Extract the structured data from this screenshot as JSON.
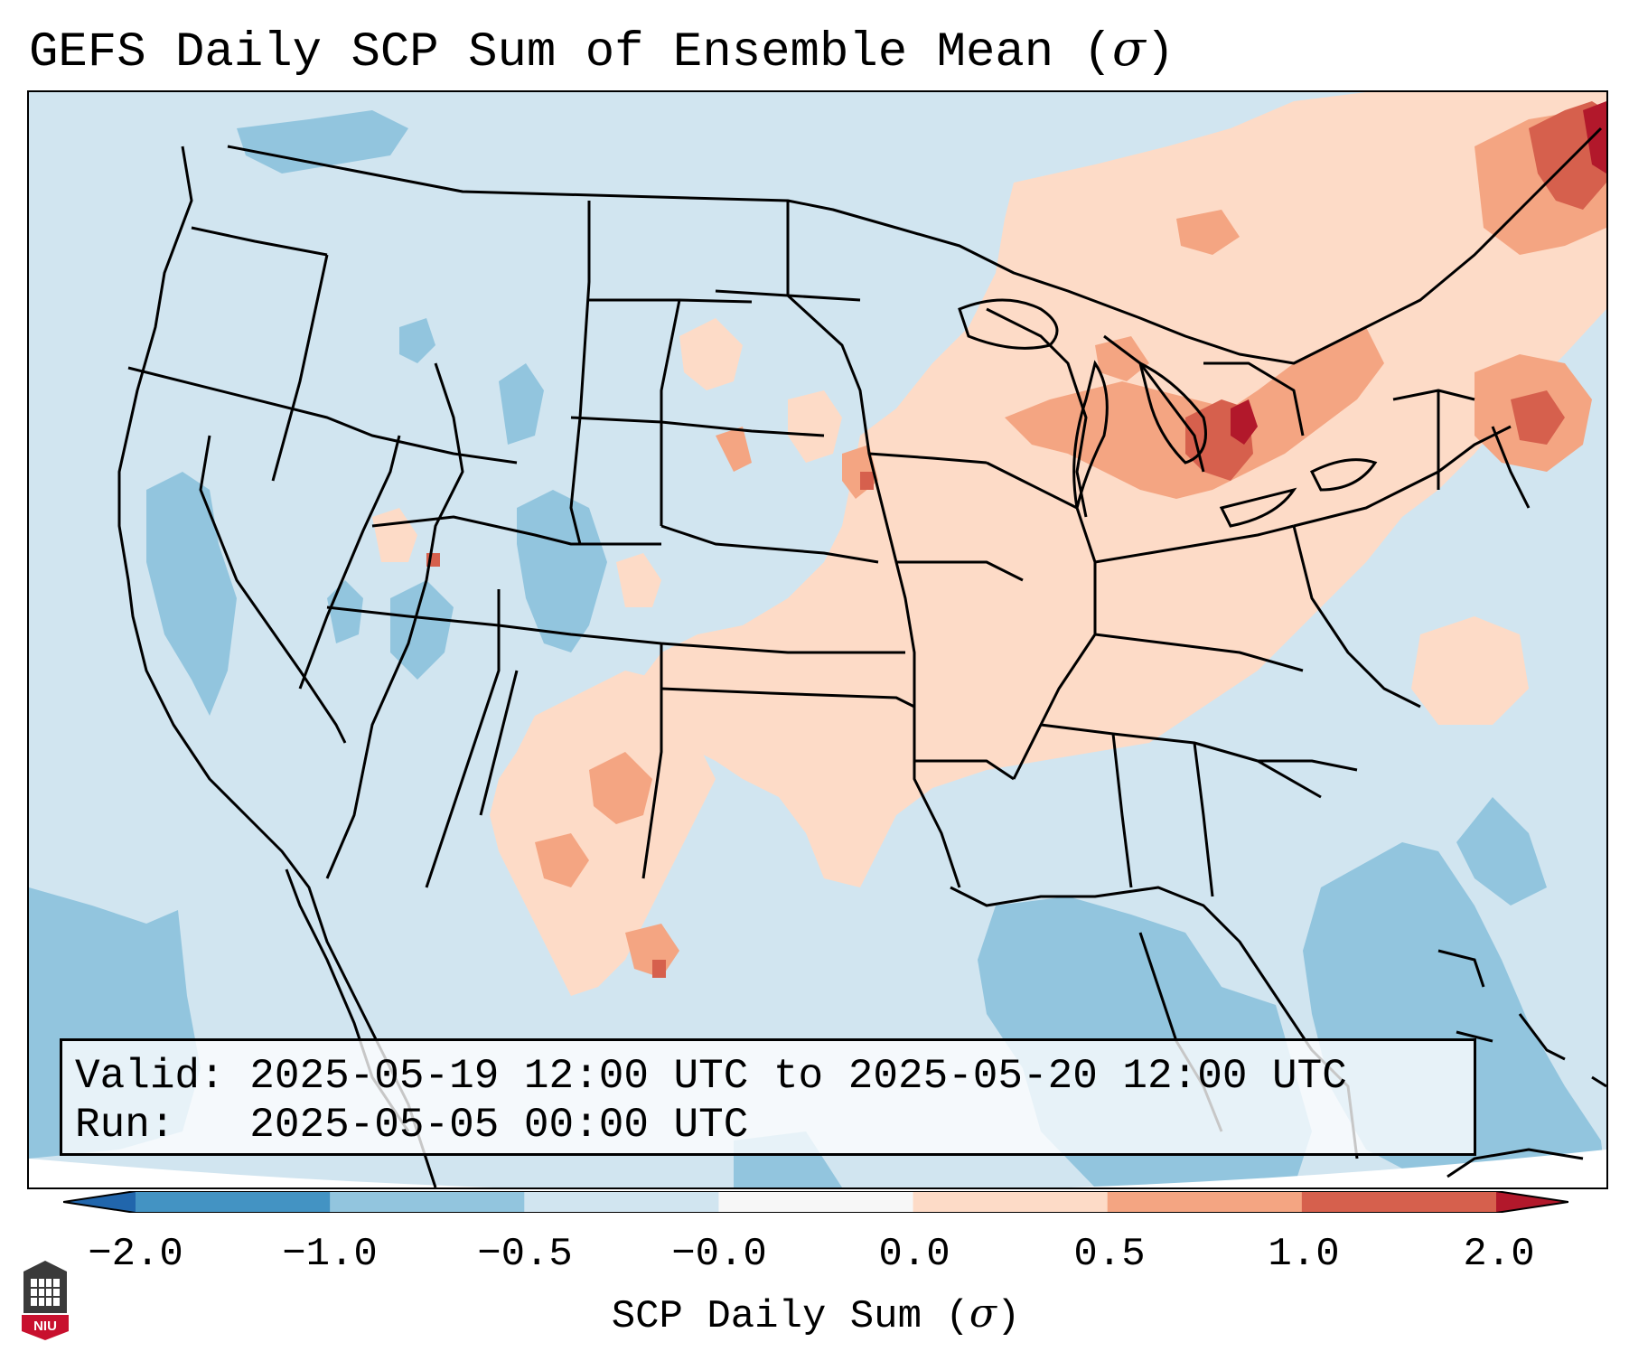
{
  "title": {
    "text": "GEFS Daily SCP Sum of Ensemble Mean (",
    "symbol": "σ",
    "close": ")"
  },
  "info": {
    "valid_label": "Valid:",
    "valid_value": "2025-05-19 12:00 UTC to 2025-05-20 12:00 UTC",
    "run_label": "Run:",
    "run_value": "2025-05-05 00:00 UTC"
  },
  "colorbar": {
    "ticks": [
      "−2.0",
      "−1.0",
      "−0.5",
      "−0.0",
      "0.0",
      "0.5",
      "1.0",
      "2.0"
    ],
    "colors": [
      "#4393c3",
      "#92c5de",
      "#d1e5f0",
      "#f7f7f7",
      "#fddbc7",
      "#f4a582",
      "#d6604d"
    ],
    "extend_min_color": "#2166ac",
    "extend_max_color": "#b2182b",
    "label_text": "SCP Daily Sum (",
    "label_symbol": "σ",
    "label_close": ")"
  },
  "map": {
    "background_color": "#d1e5f0",
    "ocean_low_color": "#92c5de",
    "positive_color": "#fddbc7",
    "moderate_color": "#f4a582",
    "high_color": "#d6604d",
    "extreme_color": "#b2182b"
  },
  "logo": {
    "text": "NIU",
    "color": "#c8102e"
  }
}
